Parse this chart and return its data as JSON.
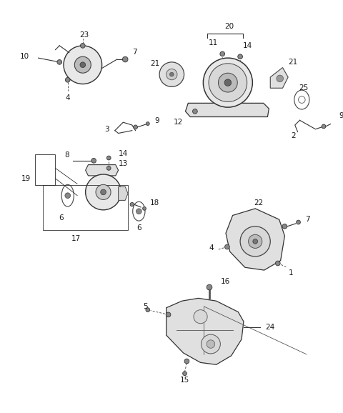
{
  "bg_color": "#ffffff",
  "fig_width": 4.8,
  "fig_height": 5.78,
  "dpi": 100,
  "label_fontsize": 7.5,
  "label_color": "#1a1a1a"
}
